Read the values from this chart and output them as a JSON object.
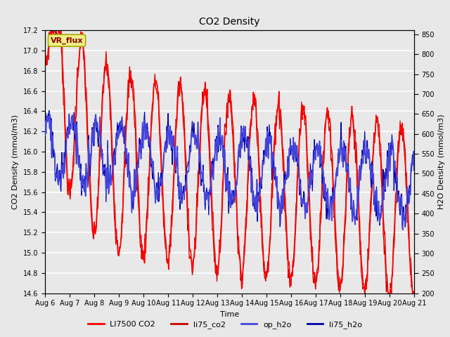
{
  "title": "CO2 Density",
  "xlabel": "Time",
  "ylabel_left": "CO2 Density (mmol/m3)",
  "ylabel_right": "H2O Density (mmol/m3)",
  "ylim_left": [
    14.6,
    17.2
  ],
  "ylim_right": [
    200,
    860
  ],
  "xtick_labels": [
    "Aug 6",
    "Aug 7",
    "Aug 8",
    "Aug 9",
    "Aug 10",
    "Aug 11",
    "Aug 12",
    "Aug 13",
    "Aug 14",
    "Aug 15",
    "Aug 16",
    "Aug 17",
    "Aug 18",
    "Aug 19",
    "Aug 20",
    "Aug 21"
  ],
  "yticks_left": [
    14.6,
    14.8,
    15.0,
    15.2,
    15.4,
    15.6,
    15.8,
    16.0,
    16.2,
    16.4,
    16.6,
    16.8,
    17.0,
    17.2
  ],
  "yticks_right": [
    200,
    250,
    300,
    350,
    400,
    450,
    500,
    550,
    600,
    650,
    700,
    750,
    800,
    850
  ],
  "legend_labels": [
    "LI7500 CO2",
    "li75_co2",
    "op_h2o",
    "li75_h2o"
  ],
  "co2_color1": "#ff0000",
  "co2_color2": "#cc0000",
  "h2o_color1": "#4444dd",
  "h2o_color2": "#0000aa",
  "vr_flux_facecolor": "#eeee88",
  "vr_flux_edgecolor": "#aaaa00",
  "bg_color": "#e8e8e8",
  "plot_bg": "#e8e8e8",
  "grid_color": "#ffffff",
  "n_days": 15,
  "n_pts_per_day": 48
}
